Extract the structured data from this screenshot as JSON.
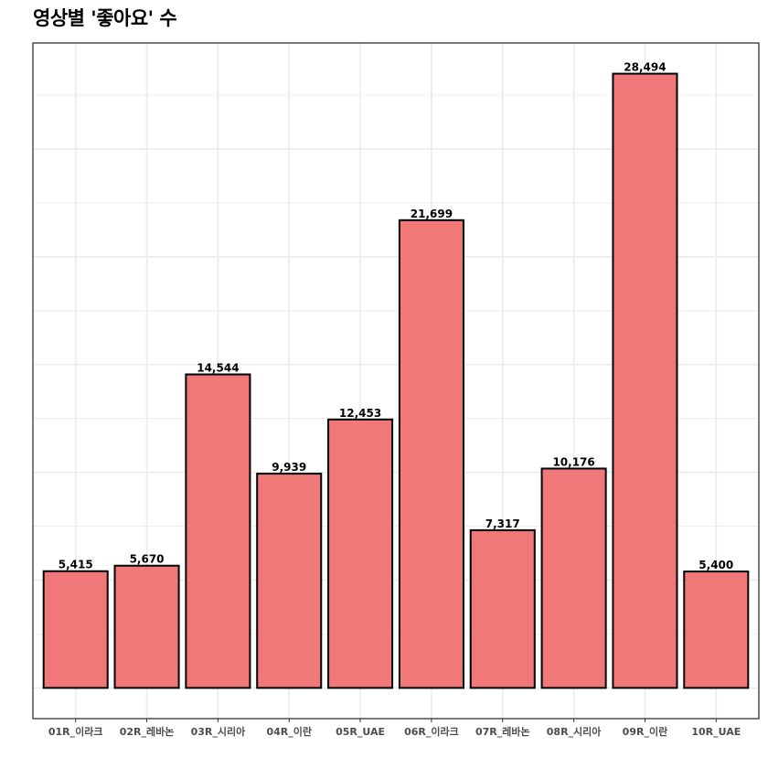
{
  "chart_data": {
    "type": "bar",
    "title": "영상별 '좋아요' 수",
    "categories": [
      "01R_이라크",
      "02R_레바논",
      "03R_시리아",
      "04R_이란",
      "05R_UAE",
      "06R_이라크",
      "07R_레바논",
      "08R_시리아",
      "09R_이란",
      "10R_UAE"
    ],
    "values": [
      5415,
      5670,
      14544,
      9939,
      12453,
      21699,
      7317,
      10176,
      28494,
      5400
    ],
    "value_labels": [
      "5,415",
      "5,670",
      "14,544",
      "9,939",
      "12,453",
      "21,699",
      "7,317",
      "10,176",
      "28,494",
      "5,400"
    ],
    "xlabel": "",
    "ylabel": "",
    "ylim": [
      -1424.7,
      29918.7
    ],
    "y_gridlines": [
      0,
      5000,
      10000,
      15000,
      20000,
      25000
    ],
    "grid": true,
    "legend": "none",
    "bar_color": "#F07878",
    "bar_border_color": "#000000",
    "grid_color": "#EBEBEB",
    "panel_border_color": "#333333"
  }
}
